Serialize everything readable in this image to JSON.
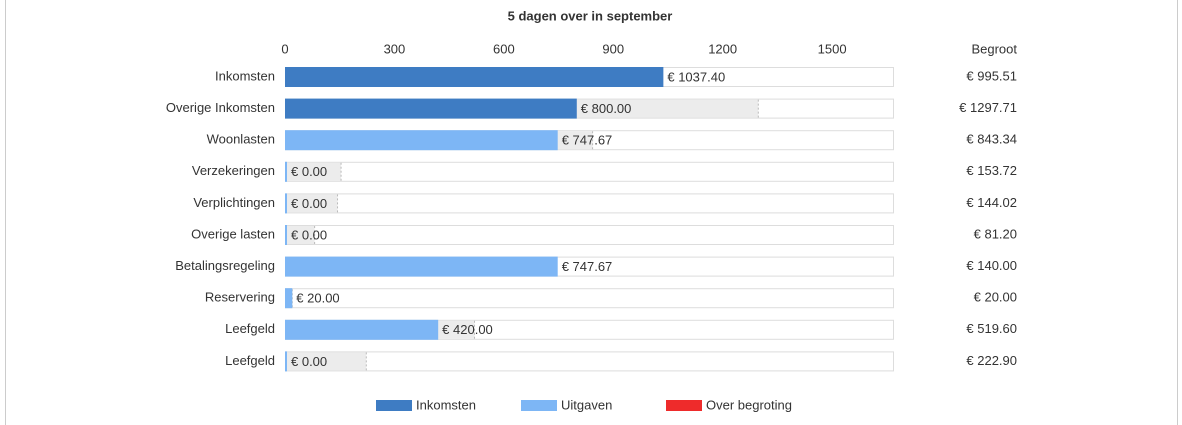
{
  "chart_data": {
    "type": "bar",
    "orientation": "horizontal",
    "title": "5 dagen over in september",
    "categories": [
      "Inkomsten",
      "Overige Inkomsten",
      "Woonlasten",
      "Verzekeringen",
      "Verplichtingen",
      "Overige lasten",
      "Betalingsregeling",
      "Reservering",
      "Leefgeld",
      "Leefgeld"
    ],
    "series": [
      {
        "name": "Inkomsten",
        "color": "#3e7cc3",
        "values": [
          1037.4,
          800,
          null,
          null,
          null,
          null,
          null,
          null,
          null,
          null
        ],
        "value_labels": [
          "€ 1037.40",
          "€ 800.00",
          null,
          null,
          null,
          null,
          null,
          null,
          null,
          null
        ]
      },
      {
        "name": "Uitgaven",
        "color": "#7db6f5",
        "values": [
          null,
          null,
          747.67,
          0,
          0,
          0,
          747.67,
          20,
          420,
          0
        ],
        "value_labels": [
          null,
          null,
          "€ 747.67",
          "€ 0.00",
          "€ 0.00",
          "€ 0.00",
          "€ 747.67",
          "€ 20.00",
          "€ 420.00",
          "€ 0.00"
        ]
      },
      {
        "name": "Over begroting",
        "color": "#ee2b2b",
        "values": [
          null,
          null,
          null,
          null,
          null,
          null,
          null,
          null,
          null,
          null
        ]
      }
    ],
    "budget": {
      "name": "Begroot",
      "color": "#ececec",
      "values": [
        995.51,
        1297.71,
        843.34,
        153.72,
        144.02,
        81.2,
        140,
        20,
        519.6,
        222.9
      ],
      "value_labels": [
        "€ 995.51",
        "€ 1297.71",
        "€ 843.34",
        "€ 153.72",
        "€ 144.02",
        "€ 81.20",
        "€ 140.00",
        "€ 20.00",
        "€ 519.60",
        "€ 222.90"
      ]
    },
    "xlim": [
      0,
      1667
    ],
    "xticks": [
      0,
      300,
      600,
      900,
      1200,
      1500
    ]
  }
}
